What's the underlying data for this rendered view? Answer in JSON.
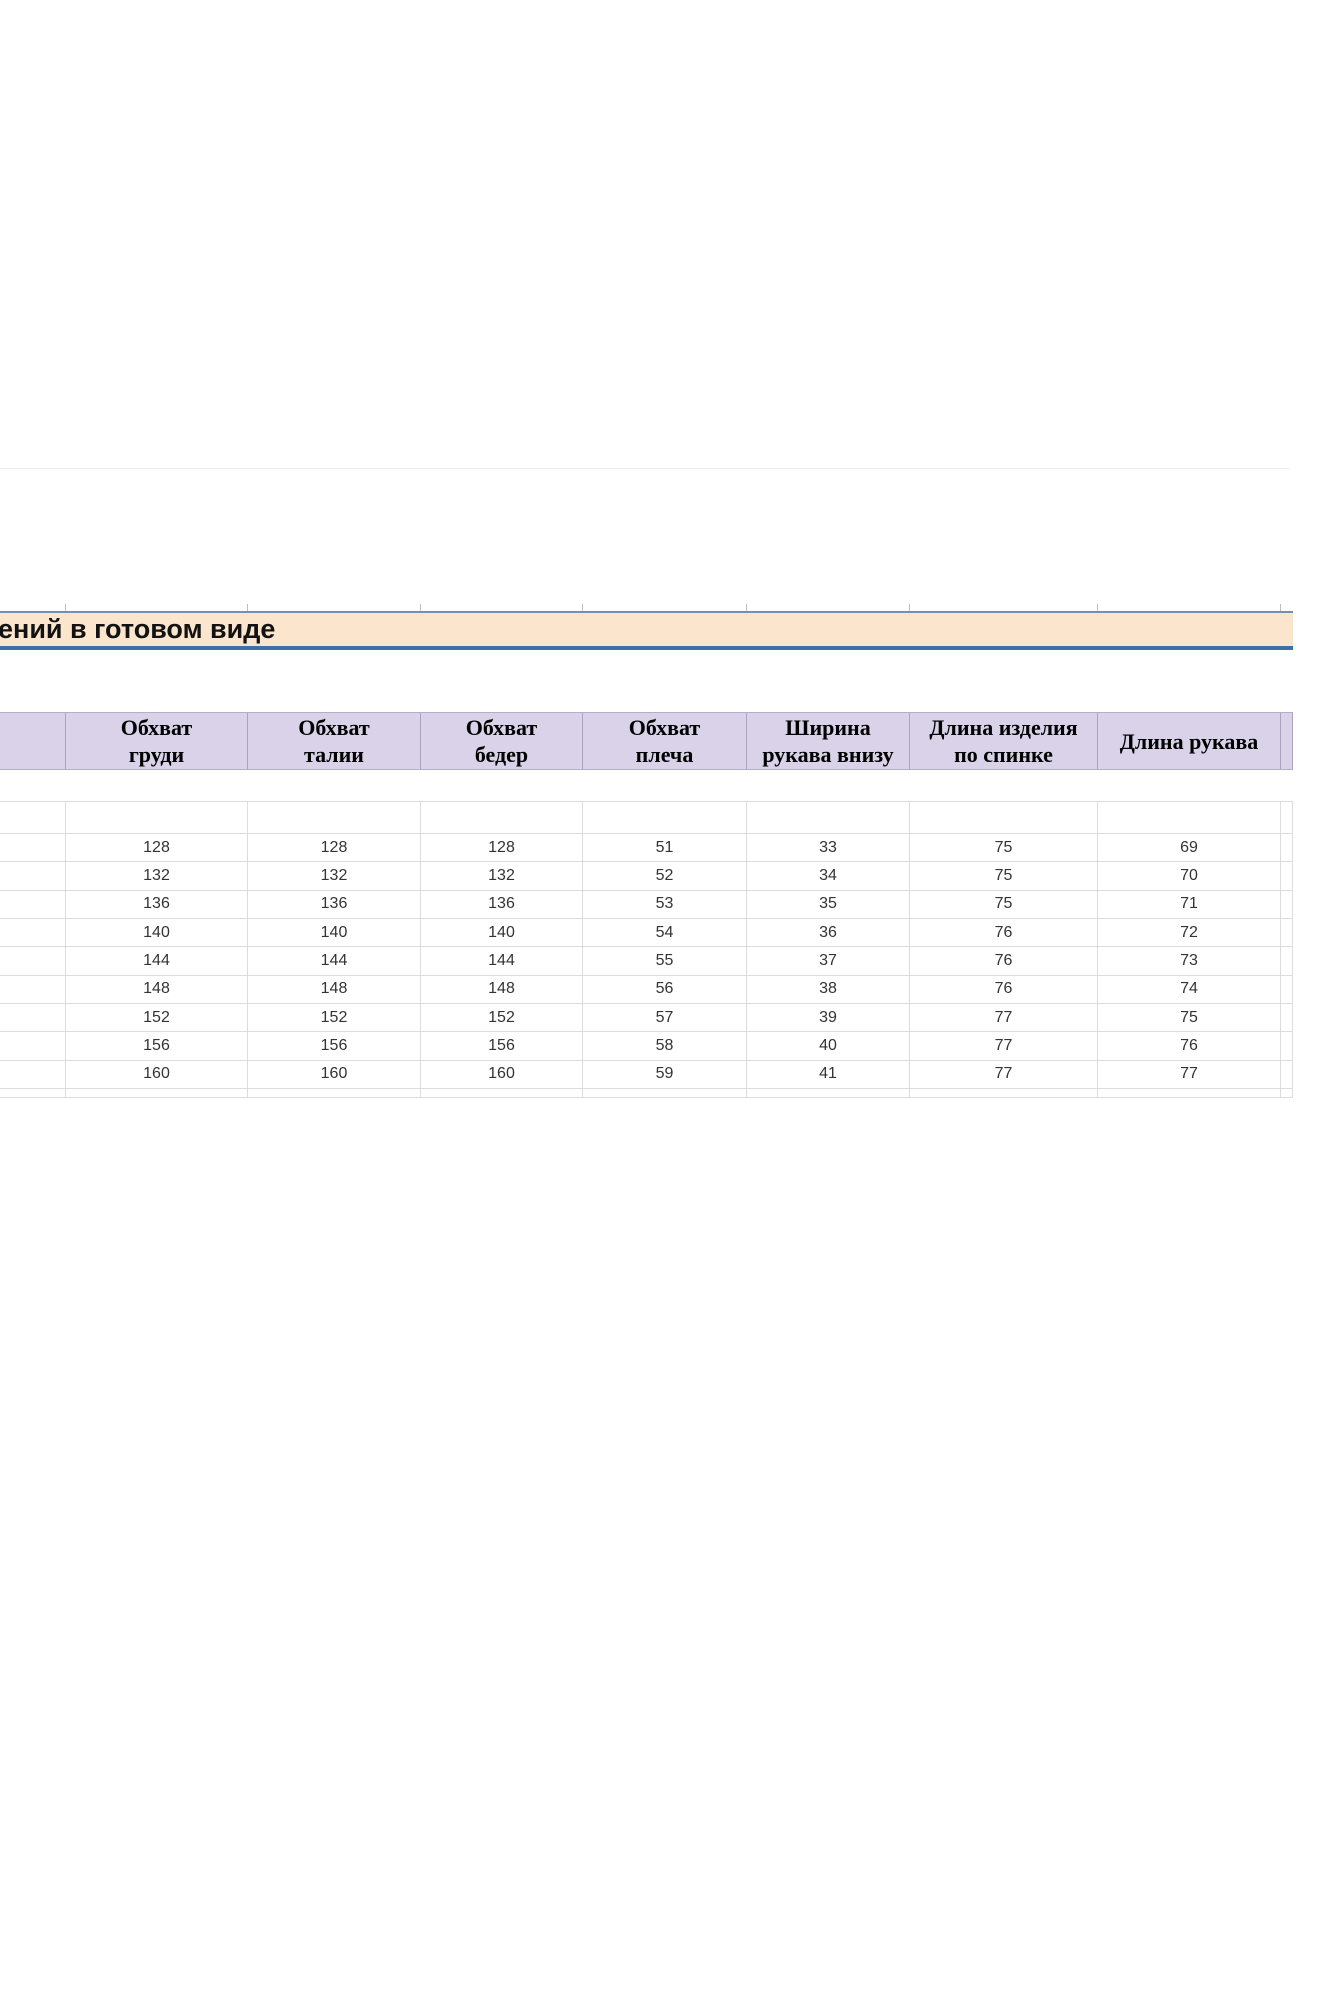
{
  "banner": {
    "title": "ений в готовом виде"
  },
  "table": {
    "columns": [
      {
        "name": "clipped-left-column",
        "lines": []
      },
      {
        "name": "chest",
        "lines": [
          "Обхват",
          "груди"
        ]
      },
      {
        "name": "waist",
        "lines": [
          "Обхват",
          "талии"
        ]
      },
      {
        "name": "hips",
        "lines": [
          "Обхват",
          "бедер"
        ]
      },
      {
        "name": "shoulder",
        "lines": [
          "Обхват",
          "плеча"
        ]
      },
      {
        "name": "sleeve-width",
        "lines": [
          "Ширина",
          "рукава внизу"
        ]
      },
      {
        "name": "back-length",
        "lines": [
          "Длина изделия",
          "по спинке"
        ]
      },
      {
        "name": "sleeve-length",
        "lines": [
          "Длина рукава"
        ]
      },
      {
        "name": "clipped-right-column",
        "lines": []
      }
    ],
    "rows": [
      [
        "128",
        "128",
        "128",
        "51",
        "33",
        "75",
        "69"
      ],
      [
        "132",
        "132",
        "132",
        "52",
        "34",
        "75",
        "70"
      ],
      [
        "136",
        "136",
        "136",
        "53",
        "35",
        "75",
        "71"
      ],
      [
        "140",
        "140",
        "140",
        "54",
        "36",
        "76",
        "72"
      ],
      [
        "144",
        "144",
        "144",
        "55",
        "37",
        "76",
        "73"
      ],
      [
        "148",
        "148",
        "148",
        "56",
        "38",
        "76",
        "74"
      ],
      [
        "152",
        "152",
        "152",
        "57",
        "39",
        "77",
        "75"
      ],
      [
        "156",
        "156",
        "156",
        "58",
        "40",
        "77",
        "76"
      ],
      [
        "160",
        "160",
        "160",
        "59",
        "41",
        "77",
        "77"
      ]
    ]
  },
  "colors": {
    "banner_bg": "#fce5cd",
    "banner_border_top": "#7290b6",
    "banner_border_bottom": "#3d6fa9",
    "header_bg": "#d9d2e9",
    "gridline": "#dcdcdc"
  }
}
